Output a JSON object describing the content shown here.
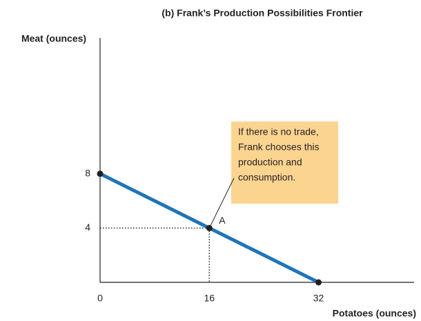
{
  "chart_data": {
    "type": "line",
    "title": "(b) Frank’s Production Possibilities Frontier",
    "x_label": "Potatoes (ounces)",
    "y_label": "Meat (ounces)",
    "x": [
      0,
      16,
      32
    ],
    "series": [
      {
        "color": "#1f74bc",
        "values": [
          8,
          4,
          0
        ]
      }
    ],
    "xlim": [
      0,
      46
    ],
    "ylim": [
      0,
      18
    ],
    "xticks": [
      0,
      16,
      32
    ],
    "yticks": [
      4,
      8
    ],
    "grid": false,
    "point_label": {
      "text": "A",
      "x": 16,
      "y": 4
    },
    "callout": {
      "lines": [
        "If there is no trade,",
        "Frank chooses this",
        "production and",
        "consumption."
      ],
      "x": 16,
      "y": 4,
      "color": "#fbd490"
    }
  }
}
